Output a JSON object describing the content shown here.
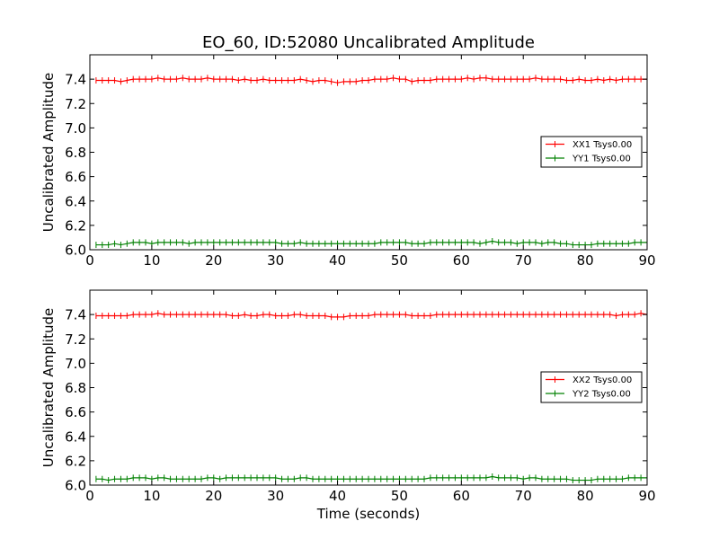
{
  "figure": {
    "title": "EO_60, ID:52080 Uncalibrated Amplitude",
    "xlabel": "Time (seconds)"
  },
  "chart_data": [
    {
      "type": "line",
      "title": "EO_60, ID:52080 Uncalibrated Amplitude",
      "xlabel": "",
      "ylabel": "Uncalibrated Amplitude",
      "xlim": [
        0,
        90
      ],
      "ylim": [
        6.0,
        7.6
      ],
      "xticks": [
        "0",
        "10",
        "20",
        "30",
        "40",
        "50",
        "60",
        "70",
        "80",
        "90"
      ],
      "yticks": [
        "6.0",
        "6.2",
        "6.4",
        "6.6",
        "6.8",
        "7.0",
        "7.2",
        "7.4"
      ],
      "grid": false,
      "legend": "right",
      "x": [
        1,
        2,
        3,
        4,
        5,
        6,
        7,
        8,
        9,
        10,
        11,
        12,
        13,
        14,
        15,
        16,
        17,
        18,
        19,
        20,
        21,
        22,
        23,
        24,
        25,
        26,
        27,
        28,
        29,
        30,
        31,
        32,
        33,
        34,
        35,
        36,
        37,
        38,
        39,
        40,
        41,
        42,
        43,
        44,
        45,
        46,
        47,
        48,
        49,
        50,
        51,
        52,
        53,
        54,
        55,
        56,
        57,
        58,
        59,
        60,
        61,
        62,
        63,
        64,
        65,
        66,
        67,
        68,
        69,
        70,
        71,
        72,
        73,
        74,
        75,
        76,
        77,
        78,
        79,
        80,
        81,
        82,
        83,
        84,
        85,
        86,
        87,
        88,
        89,
        90
      ],
      "series": [
        {
          "name": "XX1 Tsys0.00",
          "color": "#ff0000",
          "values": [
            7.39,
            7.39,
            7.39,
            7.39,
            7.38,
            7.39,
            7.4,
            7.4,
            7.4,
            7.4,
            7.41,
            7.4,
            7.4,
            7.4,
            7.41,
            7.4,
            7.4,
            7.4,
            7.41,
            7.4,
            7.4,
            7.4,
            7.4,
            7.39,
            7.4,
            7.39,
            7.39,
            7.4,
            7.39,
            7.39,
            7.39,
            7.39,
            7.39,
            7.4,
            7.39,
            7.38,
            7.39,
            7.39,
            7.38,
            7.37,
            7.38,
            7.38,
            7.38,
            7.39,
            7.39,
            7.4,
            7.4,
            7.4,
            7.41,
            7.4,
            7.4,
            7.38,
            7.39,
            7.39,
            7.39,
            7.4,
            7.4,
            7.4,
            7.4,
            7.4,
            7.41,
            7.4,
            7.41,
            7.41,
            7.4,
            7.4,
            7.4,
            7.4,
            7.4,
            7.4,
            7.4,
            7.41,
            7.4,
            7.4,
            7.4,
            7.4,
            7.39,
            7.39,
            7.4,
            7.39,
            7.39,
            7.4,
            7.39,
            7.4,
            7.39,
            7.4,
            7.4,
            7.4,
            7.4,
            7.4
          ]
        },
        {
          "name": "YY1 Tsys0.00",
          "color": "#008000",
          "values": [
            6.04,
            6.04,
            6.04,
            6.05,
            6.04,
            6.05,
            6.06,
            6.06,
            6.06,
            6.05,
            6.06,
            6.06,
            6.06,
            6.06,
            6.06,
            6.05,
            6.06,
            6.06,
            6.06,
            6.06,
            6.06,
            6.06,
            6.06,
            6.06,
            6.06,
            6.06,
            6.06,
            6.06,
            6.06,
            6.06,
            6.05,
            6.05,
            6.05,
            6.06,
            6.05,
            6.05,
            6.05,
            6.05,
            6.05,
            6.05,
            6.05,
            6.05,
            6.05,
            6.05,
            6.05,
            6.05,
            6.06,
            6.06,
            6.06,
            6.06,
            6.06,
            6.05,
            6.05,
            6.05,
            6.06,
            6.06,
            6.06,
            6.06,
            6.06,
            6.06,
            6.06,
            6.06,
            6.05,
            6.06,
            6.07,
            6.06,
            6.06,
            6.06,
            6.05,
            6.06,
            6.06,
            6.06,
            6.05,
            6.06,
            6.06,
            6.05,
            6.05,
            6.04,
            6.04,
            6.04,
            6.04,
            6.05,
            6.05,
            6.05,
            6.05,
            6.05,
            6.05,
            6.06,
            6.06,
            6.06
          ]
        }
      ]
    },
    {
      "type": "line",
      "title": "",
      "xlabel": "Time (seconds)",
      "ylabel": "Uncalibrated Amplitude",
      "xlim": [
        0,
        90
      ],
      "ylim": [
        6.0,
        7.6
      ],
      "xticks": [
        "0",
        "10",
        "20",
        "30",
        "40",
        "50",
        "60",
        "70",
        "80",
        "90"
      ],
      "yticks": [
        "6.0",
        "6.2",
        "6.4",
        "6.6",
        "6.8",
        "7.0",
        "7.2",
        "7.4"
      ],
      "grid": false,
      "legend": "right",
      "x": [
        1,
        2,
        3,
        4,
        5,
        6,
        7,
        8,
        9,
        10,
        11,
        12,
        13,
        14,
        15,
        16,
        17,
        18,
        19,
        20,
        21,
        22,
        23,
        24,
        25,
        26,
        27,
        28,
        29,
        30,
        31,
        32,
        33,
        34,
        35,
        36,
        37,
        38,
        39,
        40,
        41,
        42,
        43,
        44,
        45,
        46,
        47,
        48,
        49,
        50,
        51,
        52,
        53,
        54,
        55,
        56,
        57,
        58,
        59,
        60,
        61,
        62,
        63,
        64,
        65,
        66,
        67,
        68,
        69,
        70,
        71,
        72,
        73,
        74,
        75,
        76,
        77,
        78,
        79,
        80,
        81,
        82,
        83,
        84,
        85,
        86,
        87,
        88,
        89,
        90
      ],
      "series": [
        {
          "name": "XX2 Tsys0.00",
          "color": "#ff0000",
          "values": [
            7.39,
            7.39,
            7.39,
            7.39,
            7.39,
            7.39,
            7.4,
            7.4,
            7.4,
            7.4,
            7.41,
            7.4,
            7.4,
            7.4,
            7.4,
            7.4,
            7.4,
            7.4,
            7.4,
            7.4,
            7.4,
            7.4,
            7.39,
            7.39,
            7.4,
            7.39,
            7.39,
            7.4,
            7.4,
            7.39,
            7.39,
            7.39,
            7.4,
            7.4,
            7.39,
            7.39,
            7.39,
            7.39,
            7.38,
            7.38,
            7.38,
            7.39,
            7.39,
            7.39,
            7.39,
            7.4,
            7.4,
            7.4,
            7.4,
            7.4,
            7.4,
            7.39,
            7.39,
            7.39,
            7.39,
            7.4,
            7.4,
            7.4,
            7.4,
            7.4,
            7.4,
            7.4,
            7.4,
            7.4,
            7.4,
            7.4,
            7.4,
            7.4,
            7.4,
            7.4,
            7.4,
            7.4,
            7.4,
            7.4,
            7.4,
            7.4,
            7.4,
            7.4,
            7.4,
            7.4,
            7.4,
            7.4,
            7.4,
            7.4,
            7.39,
            7.4,
            7.4,
            7.4,
            7.41,
            7.4
          ]
        },
        {
          "name": "YY2 Tsys0.00",
          "color": "#008000",
          "values": [
            6.05,
            6.05,
            6.04,
            6.05,
            6.05,
            6.05,
            6.06,
            6.06,
            6.06,
            6.05,
            6.06,
            6.06,
            6.05,
            6.05,
            6.05,
            6.05,
            6.05,
            6.05,
            6.06,
            6.06,
            6.05,
            6.06,
            6.06,
            6.06,
            6.06,
            6.06,
            6.06,
            6.06,
            6.06,
            6.06,
            6.05,
            6.05,
            6.05,
            6.06,
            6.06,
            6.05,
            6.05,
            6.05,
            6.05,
            6.05,
            6.05,
            6.05,
            6.05,
            6.05,
            6.05,
            6.05,
            6.05,
            6.05,
            6.05,
            6.05,
            6.05,
            6.05,
            6.05,
            6.05,
            6.06,
            6.06,
            6.06,
            6.06,
            6.06,
            6.06,
            6.06,
            6.06,
            6.06,
            6.06,
            6.07,
            6.06,
            6.06,
            6.06,
            6.06,
            6.05,
            6.06,
            6.06,
            6.05,
            6.05,
            6.05,
            6.05,
            6.05,
            6.04,
            6.04,
            6.04,
            6.04,
            6.05,
            6.05,
            6.05,
            6.05,
            6.05,
            6.06,
            6.06,
            6.06,
            6.06
          ]
        }
      ]
    }
  ]
}
